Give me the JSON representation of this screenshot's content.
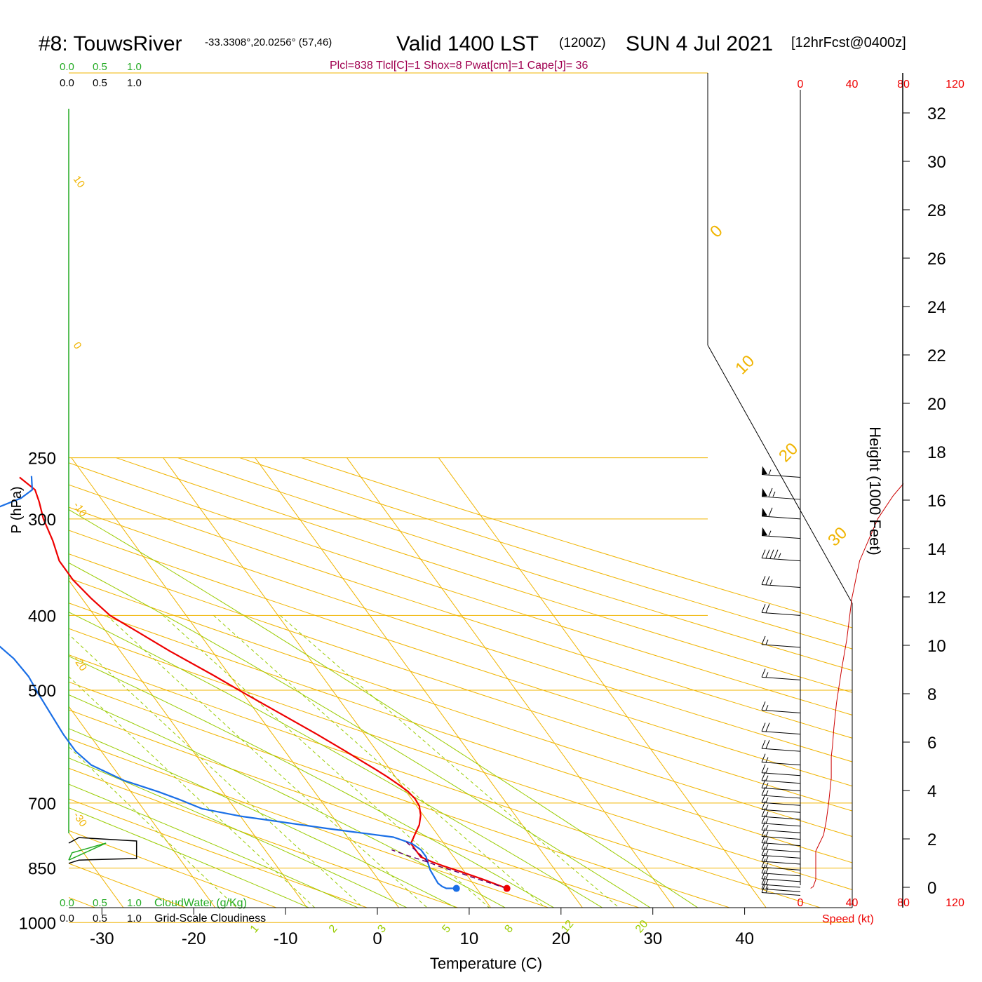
{
  "header": {
    "station": "#8: TouwsRiver",
    "coords": "-33.3308°,20.0256° (57,46)",
    "valid": "Valid 1400 LST",
    "zulu": "(1200Z)",
    "date": "SUN 4 Jul 2021",
    "fcst": "[12hrFcst@0400z]",
    "indices": "Plcl=838 Tlcl[C]=1 Shox=8 Pwat[cm]=1 Cape[J]= 36"
  },
  "colors": {
    "temperature": "#ee0000",
    "dewpoint": "#1a6fe6",
    "parcel": "#660066",
    "isotherm": "#f0b400",
    "dry_adiabat": "#f0b400",
    "moist_adiabat": "#99cc00",
    "mixing_ratio": "#99cc00",
    "cloud_water": "#22aa22",
    "height_curve": "#cc0000",
    "speed_axis": "#ee0000"
  },
  "cloud_scale": {
    "green": [
      "0.0",
      "0.5",
      "1.0"
    ],
    "black": [
      "0.0",
      "0.5",
      "1.0"
    ],
    "cloud_water_label": "CloudWater (g/Kg)",
    "cloudiness_label": "Grid-Scale Cloudiness"
  },
  "chart_data": {
    "type": "line",
    "subtype": "skew-T log-P sounding",
    "xlabel": "Temperature (C)",
    "ylabel": "P (hPa)",
    "x_ticks": [
      "-30",
      "-20",
      "-10",
      "0",
      "10",
      "20",
      "30",
      "40"
    ],
    "y_ticks": [
      "250",
      "300",
      "400",
      "500",
      "700",
      "850",
      "1000"
    ],
    "xlim": [
      -35,
      50
    ],
    "ylim": [
      1030,
      250
    ],
    "y_scale": "log",
    "series": [
      {
        "key": "temperature",
        "points": [
          [
            13.3,
            903
          ],
          [
            11.5,
            880
          ],
          [
            9.5,
            858
          ],
          [
            8.2,
            845
          ],
          [
            7.3,
            835
          ],
          [
            6.4,
            822
          ],
          [
            6.4,
            790
          ],
          [
            7.6,
            768
          ],
          [
            8.8,
            747
          ],
          [
            9.7,
            726
          ],
          [
            10.3,
            706
          ],
          [
            10.4,
            691
          ],
          [
            10.2,
            676
          ],
          [
            9.7,
            662
          ],
          [
            9.1,
            647
          ],
          [
            8.4,
            633
          ],
          [
            7.7,
            620
          ],
          [
            6.6,
            600
          ],
          [
            4.8,
            570
          ],
          [
            2.4,
            535
          ],
          [
            0.2,
            505
          ],
          [
            -1.8,
            478
          ],
          [
            -4.6,
            445
          ],
          [
            -6.6,
            420
          ],
          [
            -8.3,
            400
          ],
          [
            -9.0,
            380
          ],
          [
            -9.5,
            360
          ],
          [
            -9.5,
            340
          ],
          [
            -8.6,
            320
          ],
          [
            -7.9,
            300
          ],
          [
            -7.0,
            285
          ],
          [
            -6.5,
            275
          ],
          [
            -7.2,
            265
          ]
        ]
      },
      {
        "key": "dewpoint",
        "points": [
          [
            7.8,
            903
          ],
          [
            6.7,
            903
          ],
          [
            6.4,
            898
          ],
          [
            6.2,
            889
          ],
          [
            6.3,
            872
          ],
          [
            6.4,
            855
          ],
          [
            6.7,
            838
          ],
          [
            7.0,
            822
          ],
          [
            7.0,
            805
          ],
          [
            6.5,
            790
          ],
          [
            5.0,
            775
          ],
          [
            -1.6,
            755
          ],
          [
            -10.0,
            728
          ],
          [
            -13.6,
            712
          ],
          [
            -15.3,
            693
          ],
          [
            -17.0,
            677
          ],
          [
            -19.8,
            655
          ],
          [
            -22.2,
            625
          ],
          [
            -22.8,
            600
          ],
          [
            -22.8,
            570
          ],
          [
            -22.5,
            530
          ],
          [
            -22.3,
            505
          ],
          [
            -22.0,
            480
          ],
          [
            -22.2,
            455
          ],
          [
            -22.9,
            435
          ],
          [
            -23.5,
            420
          ],
          [
            -24.0,
            405
          ],
          [
            -25.3,
            392
          ],
          [
            -26.7,
            380
          ],
          [
            -26.7,
            372
          ],
          [
            -25.5,
            360
          ],
          [
            -24.8,
            345
          ],
          [
            -23.0,
            330
          ],
          [
            -19.2,
            315
          ],
          [
            -15.2,
            300
          ],
          [
            -12.0,
            290
          ],
          [
            -8.7,
            282
          ],
          [
            -6.8,
            275
          ],
          [
            -5.8,
            264
          ]
        ]
      },
      {
        "key": "parcel",
        "points": [
          [
            13.3,
            903
          ],
          [
            11.0,
            880
          ],
          [
            9.0,
            858
          ],
          [
            7.6,
            845
          ],
          [
            6.8,
            835
          ],
          [
            5.2,
            820
          ],
          [
            3.8,
            805
          ]
        ]
      },
      {
        "key": "parcel2",
        "points": [
          [
            6.8,
            836
          ],
          [
            6.4,
            808
          ],
          [
            6.0,
            785
          ]
        ]
      }
    ],
    "surface_markers": [
      {
        "kind": "temperature",
        "t": 13.3,
        "p": 903
      },
      {
        "kind": "dewpoint",
        "t": 7.8,
        "p": 903
      }
    ],
    "isotherms": [
      -110,
      -100,
      -90,
      -80,
      -70,
      -60,
      -50,
      -40,
      -30,
      -20,
      -10,
      0,
      10,
      20,
      30,
      40
    ],
    "isotherm_labels": [
      {
        "t": "10",
        "value": 10
      },
      {
        "t": "0",
        "value": 0
      },
      {
        "t": "-10",
        "value": -10
      },
      {
        "t": "-20",
        "value": -20
      },
      {
        "t": "-30",
        "value": -30
      },
      {
        "t": "0",
        "value": 0
      },
      {
        "t": "10",
        "value": 10
      },
      {
        "t": "20",
        "value": 20
      },
      {
        "t": "30",
        "value": 30
      }
    ],
    "dry_adiabats_theta_c": [
      -30,
      -20,
      -10,
      0,
      10,
      20,
      30,
      40,
      50,
      60,
      70,
      80,
      90,
      100,
      110,
      120,
      130,
      140,
      150,
      160,
      170
    ],
    "moist_adiabats_c": [
      -5,
      0,
      5,
      10,
      15,
      20,
      25,
      30,
      35
    ],
    "mixing_ratio_g_kg": [
      {
        "label": "1",
        "value": 1
      },
      {
        "label": "2",
        "value": 2
      },
      {
        "label": "3",
        "value": 3
      },
      {
        "label": "5",
        "value": 5
      },
      {
        "label": "8",
        "value": 8
      },
      {
        "label": "12",
        "value": 12
      },
      {
        "label": "20",
        "value": 20
      }
    ],
    "wind_profile": {
      "speed_axis_label": "Speed (kt)",
      "speed_ticks": [
        "0",
        "40",
        "80",
        "120"
      ],
      "speed_ticks_bottom": [
        "0",
        "40",
        "80",
        "120"
      ],
      "barbs": [
        {
          "p": 265,
          "kt": 55
        },
        {
          "p": 283,
          "kt": 65
        },
        {
          "p": 300,
          "kt": 60
        },
        {
          "p": 318,
          "kt": 55
        },
        {
          "p": 340,
          "kt": 45
        },
        {
          "p": 368,
          "kt": 25
        },
        {
          "p": 400,
          "kt": 20
        },
        {
          "p": 440,
          "kt": 15
        },
        {
          "p": 485,
          "kt": 15
        },
        {
          "p": 535,
          "kt": 15
        },
        {
          "p": 570,
          "kt": 20
        },
        {
          "p": 600,
          "kt": 20
        },
        {
          "p": 625,
          "kt": 15
        },
        {
          "p": 645,
          "kt": 15
        },
        {
          "p": 660,
          "kt": 15
        },
        {
          "p": 675,
          "kt": 15
        },
        {
          "p": 690,
          "kt": 15
        },
        {
          "p": 705,
          "kt": 15
        },
        {
          "p": 720,
          "kt": 15
        },
        {
          "p": 735,
          "kt": 15
        },
        {
          "p": 750,
          "kt": 15
        },
        {
          "p": 765,
          "kt": 15
        },
        {
          "p": 780,
          "kt": 15
        },
        {
          "p": 795,
          "kt": 15
        },
        {
          "p": 810,
          "kt": 15
        },
        {
          "p": 825,
          "kt": 15
        },
        {
          "p": 840,
          "kt": 15
        },
        {
          "p": 855,
          "kt": 15
        },
        {
          "p": 870,
          "kt": 15
        },
        {
          "p": 885,
          "kt": 15
        },
        {
          "p": 900,
          "kt": 15
        },
        {
          "p": 912,
          "kt": 15
        },
        {
          "p": 922,
          "kt": 15
        }
      ],
      "speed_profile_kt": [
        [
          8,
          903
        ],
        [
          10,
          898
        ],
        [
          12,
          880
        ],
        [
          12,
          840
        ],
        [
          12,
          808
        ],
        [
          14,
          795
        ],
        [
          18,
          770
        ],
        [
          20,
          740
        ],
        [
          22,
          700
        ],
        [
          24,
          650
        ],
        [
          24,
          610
        ],
        [
          25,
          590
        ],
        [
          26,
          560
        ],
        [
          28,
          520
        ],
        [
          32,
          470
        ],
        [
          36,
          430
        ],
        [
          40,
          380
        ],
        [
          46,
          340
        ],
        [
          60,
          300
        ],
        [
          72,
          280
        ],
        [
          80,
          270
        ]
      ]
    },
    "height_axis": {
      "label": "Height (1000 Feet)",
      "ticks": [
        "0",
        "2",
        "4",
        "6",
        "8",
        "10",
        "12",
        "14",
        "16",
        "18",
        "20",
        "22",
        "24",
        "26",
        "28",
        "30",
        "32"
      ]
    },
    "cloud_profile": {
      "cloud_water": [
        [
          0,
          830
        ],
        [
          0.55,
          789
        ],
        [
          0.05,
          812
        ],
        [
          0,
          830
        ]
      ],
      "cloudiness": [
        [
          0,
          789
        ],
        [
          0.15,
          776
        ],
        [
          1.0,
          784
        ],
        [
          1.0,
          826
        ],
        [
          0.15,
          830
        ],
        [
          0,
          838
        ]
      ]
    }
  }
}
